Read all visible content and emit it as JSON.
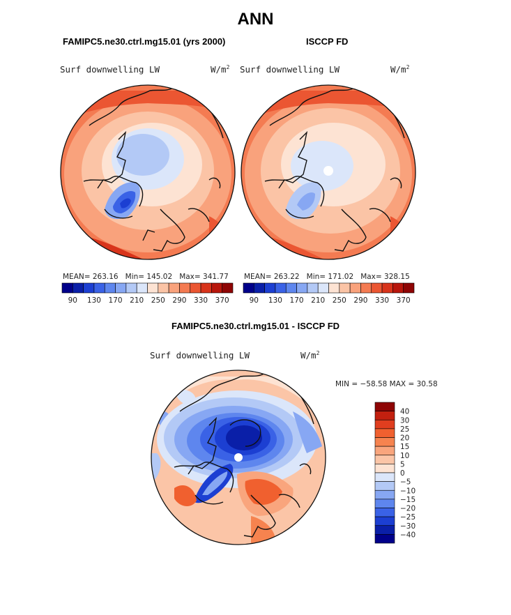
{
  "title": "ANN",
  "panels": [
    {
      "case_title": "FAMIPC5.ne30.ctrl.mg15.01 (yrs 2000)",
      "variable": "Surf downwelling LW",
      "units": "W/m",
      "units_sup": "2",
      "mean_label": "MEAN=",
      "mean": "263.16",
      "min_label": "Min=",
      "min": "145.02",
      "max_label": "Max=",
      "max": "341.77"
    },
    {
      "case_title": "ISCCP FD",
      "variable": "Surf downwelling LW",
      "units": "W/m",
      "units_sup": "2",
      "mean_label": "MEAN=",
      "mean": "263.22",
      "min_label": "Min=",
      "min": "171.02",
      "max_label": "Max=",
      "max": "328.15"
    }
  ],
  "diff": {
    "title": "FAMIPC5.ne30.ctrl.mg15.01 - ISCCP FD",
    "variable": "Surf downwelling LW",
    "units": "W/m",
    "units_sup": "2",
    "minmax": "MIN = −58.58 MAX =  30.58"
  },
  "chart_data": [
    {
      "type": "heatmap",
      "title": "FAMIPC5.ne30.ctrl.mg15.01 (yrs 2000)",
      "variable": "Surf downwelling LW",
      "units": "W/m^2",
      "projection": "north polar stereographic",
      "mean": 263.16,
      "min": 145.02,
      "max": 341.77,
      "colorbar_levels": [
        90,
        110,
        130,
        150,
        170,
        190,
        210,
        230,
        250,
        270,
        290,
        310,
        330,
        350,
        370
      ],
      "colorbar_ticks": [
        "90",
        "130",
        "170",
        "210",
        "250",
        "290",
        "330",
        "370"
      ]
    },
    {
      "type": "heatmap",
      "title": "ISCCP FD",
      "variable": "Surf downwelling LW",
      "units": "W/m^2",
      "projection": "north polar stereographic",
      "mean": 263.22,
      "min": 171.02,
      "max": 328.15,
      "colorbar_levels": [
        90,
        110,
        130,
        150,
        170,
        190,
        210,
        230,
        250,
        270,
        290,
        310,
        330,
        350,
        370
      ],
      "colorbar_ticks": [
        "90",
        "130",
        "170",
        "210",
        "250",
        "290",
        "330",
        "370"
      ]
    },
    {
      "type": "heatmap",
      "title": "FAMIPC5.ne30.ctrl.mg15.01 - ISCCP FD",
      "variable": "Surf downwelling LW",
      "units": "W/m^2",
      "projection": "north polar stereographic",
      "min": -58.58,
      "max": 30.58,
      "colorbar_levels": [
        40,
        30,
        25,
        20,
        15,
        10,
        5,
        0,
        -5,
        -10,
        -15,
        -20,
        -25,
        -30,
        -40
      ],
      "colorbar_ticks": [
        "40",
        "30",
        "25",
        "20",
        "15",
        "10",
        "5",
        "0",
        "−5",
        "−10",
        "−15",
        "−20",
        "−25",
        "−30",
        "−40"
      ]
    }
  ],
  "colors": {
    "abs_scale": [
      "#00008a",
      "#0a1fa8",
      "#1c3fd2",
      "#3a62e6",
      "#5e86ee",
      "#87a7f3",
      "#b3c9f6",
      "#dbe6fa",
      "#fde3d3",
      "#fbc4a6",
      "#f9a27c",
      "#f47b52",
      "#eb5632",
      "#d8341b",
      "#b8160c",
      "#8e0505"
    ],
    "diff_scale": [
      "#8e0505",
      "#c2200f",
      "#e03e1f",
      "#f0602f",
      "#f6834f",
      "#f9a57d",
      "#fbc5a7",
      "#fde3d3",
      "#dbe6fa",
      "#b3c9f6",
      "#87a7f3",
      "#5e86ee",
      "#3a62e6",
      "#1c3fd2",
      "#0a1fa8",
      "#00008a"
    ]
  }
}
